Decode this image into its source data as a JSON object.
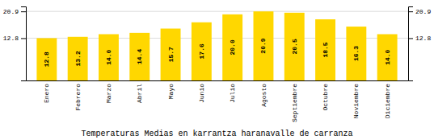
{
  "chart_data": {
    "type": "bar",
    "title": "Temperaturas Medias en karrantza haranavalle de carranza",
    "categories": [
      "Enero",
      "Febrero",
      "Marzo",
      "Abril",
      "Mayo",
      "Junio",
      "Julio",
      "Agosto",
      "Septiembre",
      "Octubre",
      "Noviembre",
      "Diciembre"
    ],
    "values": [
      12.8,
      13.2,
      14.0,
      14.4,
      15.7,
      17.6,
      20.0,
      20.9,
      20.5,
      18.5,
      16.3,
      14.0
    ],
    "value_labels": [
      "12.8",
      "13.2",
      "14.0",
      "14.4",
      "15.7",
      "17.6",
      "20.0",
      "20.9",
      "20.5",
      "18.5",
      "16.3",
      "14.0"
    ],
    "color": "#FFD700",
    "ylim": [
      0,
      22.4
    ],
    "yticks": [
      12.8,
      20.9
    ],
    "grid": true,
    "data_labels": true
  }
}
